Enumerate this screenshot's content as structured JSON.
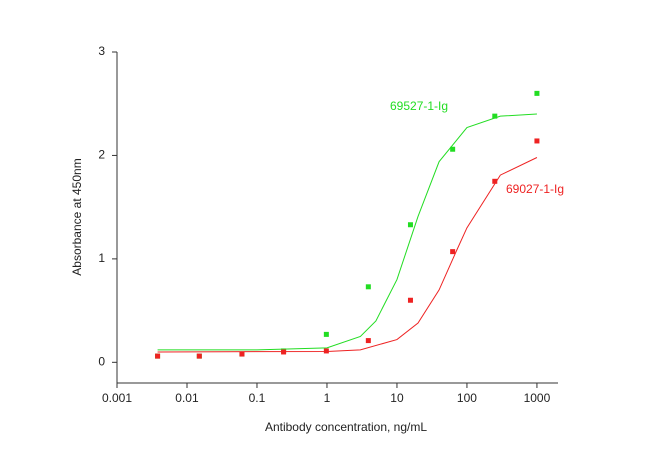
{
  "chart_data": {
    "type": "scatter",
    "x_label": "Antibody concentration, ng/mL",
    "y_label": "Absorbance at 450nm",
    "xscale": "log",
    "xlim": [
      0.001,
      2000
    ],
    "xticks": [
      0.001,
      0.01,
      0.1,
      1,
      10,
      100,
      1000
    ],
    "ylim": [
      -0.2,
      3
    ],
    "yticks": [
      0,
      1,
      2,
      3
    ],
    "series": [
      {
        "name": "69527-1-Ig",
        "color": "#22dd22",
        "x": [
          0.0038,
          0.015,
          0.061,
          0.24,
          0.98,
          3.9,
          15.6,
          62.5,
          250,
          1000
        ],
        "values": [
          0.06,
          0.06,
          0.08,
          0.11,
          0.27,
          0.73,
          1.33,
          2.06,
          2.38,
          2.6
        ],
        "curve": {
          "x": [
            0.0038,
            0.1,
            1,
            3,
            5,
            10,
            20,
            40,
            100,
            300,
            1000
          ],
          "values": [
            0.12,
            0.12,
            0.14,
            0.25,
            0.4,
            0.8,
            1.41,
            1.94,
            2.27,
            2.38,
            2.4
          ]
        }
      },
      {
        "name": "69027-1-Ig",
        "color": "#ee2222",
        "x": [
          0.0038,
          0.015,
          0.061,
          0.24,
          0.98,
          3.9,
          15.6,
          62.5,
          250,
          1000
        ],
        "values": [
          0.06,
          0.06,
          0.08,
          0.1,
          0.11,
          0.21,
          0.6,
          1.07,
          1.75,
          2.14
        ],
        "curve": {
          "x": [
            0.0038,
            1,
            3,
            10,
            20,
            40,
            70,
            100,
            300,
            1000
          ],
          "values": [
            0.1,
            0.105,
            0.12,
            0.22,
            0.38,
            0.7,
            1.07,
            1.3,
            1.81,
            1.98
          ]
        }
      }
    ]
  }
}
